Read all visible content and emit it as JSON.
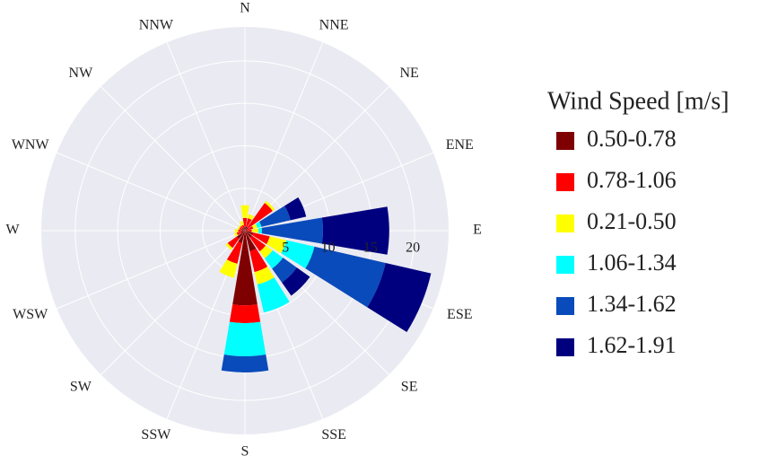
{
  "chart_data": {
    "type": "windrose",
    "legend_title": "Wind Speed [m/s]",
    "categories": [
      "N",
      "NNE",
      "NE",
      "ENE",
      "E",
      "ESE",
      "SE",
      "SSE",
      "S",
      "SSW",
      "SW",
      "WSW",
      "W",
      "WNW",
      "NW",
      "NNW"
    ],
    "series": [
      {
        "name": "0.50-0.78",
        "color": "#7f0000",
        "values": [
          0.5,
          0.5,
          0.5,
          0.3,
          0.3,
          1,
          1,
          2.5,
          8.8,
          1.5,
          1.2,
          0.5,
          0.4,
          0.4,
          0.4,
          0.4
        ]
      },
      {
        "name": "0.78-1.06",
        "color": "#ff0000",
        "values": [
          1,
          1,
          3.5,
          0.7,
          0.5,
          2,
          2,
          2.5,
          2.1,
          2.5,
          1.3,
          0.5,
          0.4,
          0.3,
          0.3,
          0.3
        ]
      },
      {
        "name": "0.21-0.50",
        "color": "#ffff00",
        "values": [
          1.5,
          0.5,
          0.3,
          0.5,
          0.8,
          2,
          1,
          1.5,
          0,
          1.7,
          0.3,
          0.3,
          0.4,
          0.2,
          0.2,
          0.5
        ]
      },
      {
        "name": "1.06-1.34",
        "color": "#00ffff",
        "values": [
          0,
          0,
          0,
          0.5,
          0.4,
          3.4,
          1.5,
          3.4,
          3.9,
          0,
          0,
          0,
          0,
          0,
          0,
          0
        ]
      },
      {
        "name": "1.34-1.62",
        "color": "#0a4bbb",
        "values": [
          0,
          0,
          0,
          3.5,
          7.2,
          8.6,
          2,
          0,
          1.9,
          0,
          0,
          0,
          0,
          0,
          0,
          0
        ]
      },
      {
        "name": "1.62-1.91",
        "color": "#00007f",
        "values": [
          0,
          0,
          0,
          1.9,
          7.8,
          5.5,
          1.9,
          0,
          0,
          0,
          0,
          0,
          0,
          0,
          0,
          0
        ]
      }
    ],
    "ylim": [
      0,
      24
    ],
    "yticks": [
      5,
      10,
      15,
      20
    ],
    "grid": true
  }
}
